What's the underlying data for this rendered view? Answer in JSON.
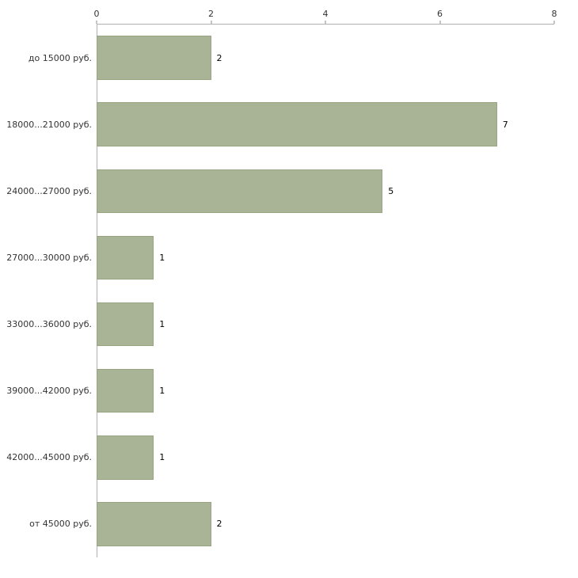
{
  "chart_data": {
    "type": "bar",
    "orientation": "horizontal",
    "title": "",
    "xlabel": "",
    "ylabel": "",
    "categories": [
      "до 15000 руб.",
      "18000...21000 руб.",
      "24000...27000 руб.",
      "27000...30000 руб.",
      "33000...36000 руб.",
      "39000...42000 руб.",
      "42000...45000 руб.",
      "от 45000 руб."
    ],
    "values": [
      2,
      7,
      5,
      1,
      1,
      1,
      1,
      2
    ],
    "value_labels": [
      "2",
      "7",
      "5",
      "1",
      "1",
      "1",
      "1",
      "2"
    ],
    "xlim": [
      0,
      8
    ],
    "xticks": [
      0,
      2,
      4,
      6,
      8
    ],
    "xtick_labels": [
      "0",
      "2",
      "4",
      "6",
      "8"
    ],
    "grid": false,
    "legend_position": "none",
    "colors": {
      "bar_fill": "#a9b396",
      "bar_border": "#99a483",
      "axis_line": "#b0b0b0",
      "tick_mark": "#888888",
      "label_text": "#333333",
      "value_text": "#000000",
      "background": "#ffffff"
    }
  }
}
